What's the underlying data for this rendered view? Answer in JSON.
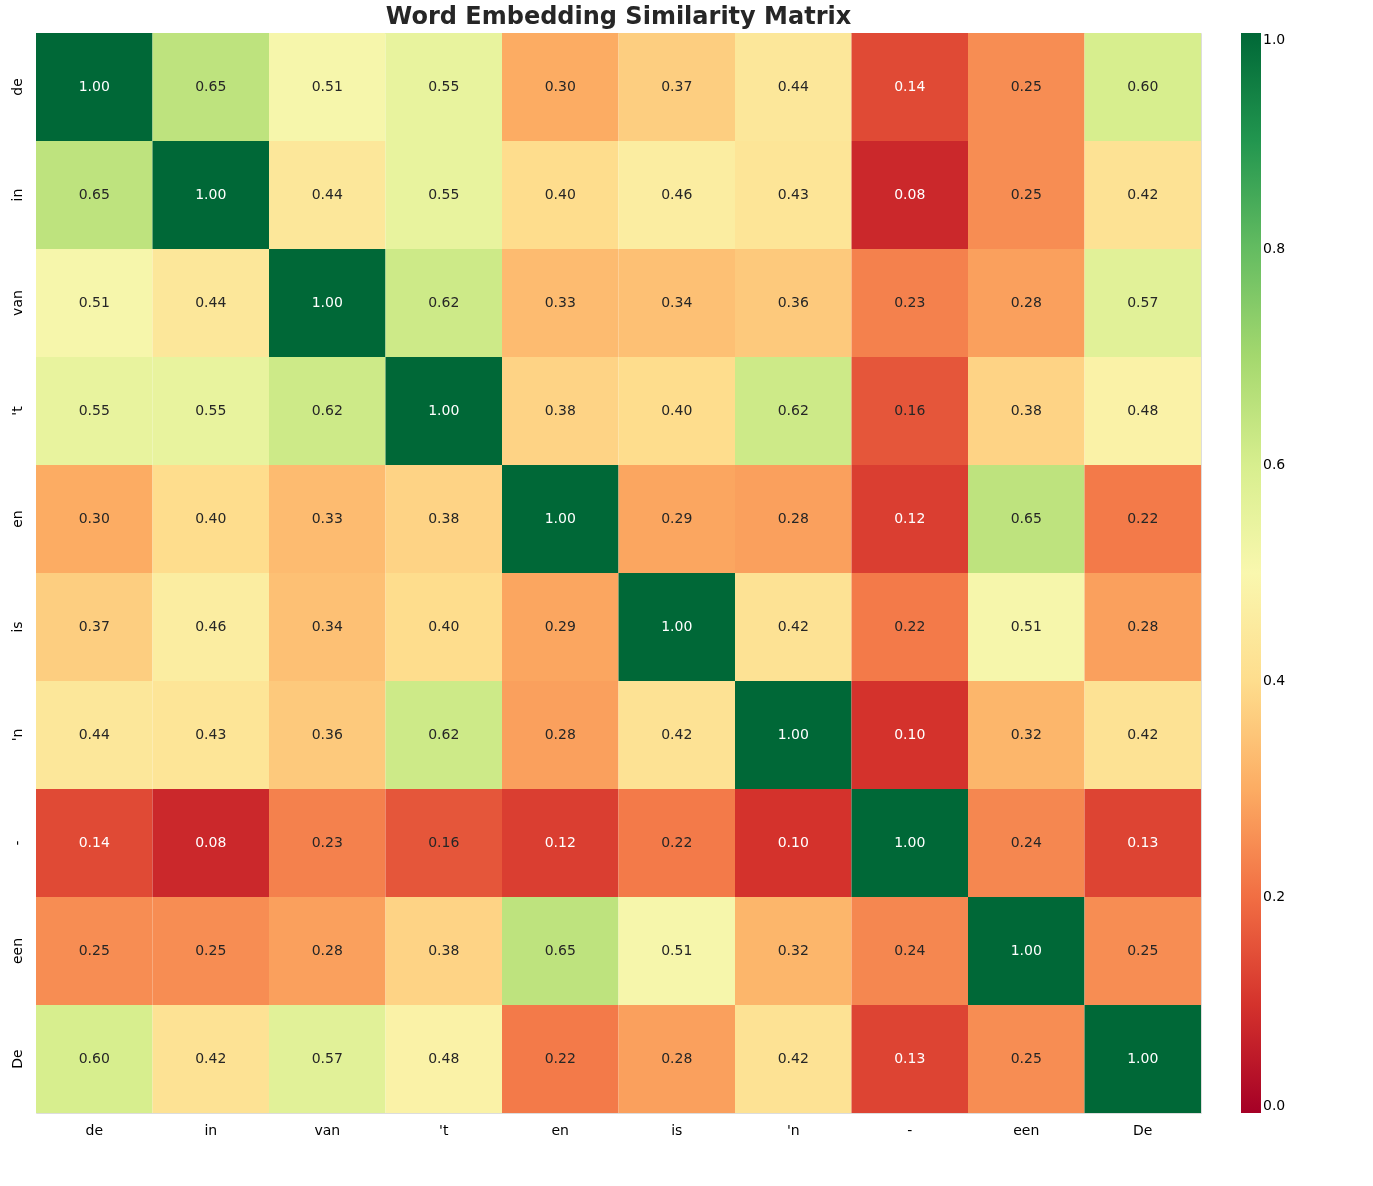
{
  "chart_data": {
    "type": "heatmap",
    "title": "Word Embedding Similarity Matrix",
    "categories": [
      "de",
      "in",
      "van",
      "'t",
      "en",
      "is",
      "'n",
      "-",
      "een",
      "De"
    ],
    "y_categories": [
      "de",
      "in",
      "van",
      "'t",
      "en",
      "is",
      "'n",
      "-",
      "een",
      "De"
    ],
    "cells": [
      [
        1.0,
        0.65,
        0.51,
        0.55,
        0.3,
        0.37,
        0.44,
        0.14,
        0.25,
        0.6
      ],
      [
        0.65,
        1.0,
        0.44,
        0.55,
        0.4,
        0.46,
        0.43,
        0.08,
        0.25,
        0.42
      ],
      [
        0.51,
        0.44,
        1.0,
        0.62,
        0.33,
        0.34,
        0.36,
        0.23,
        0.28,
        0.57
      ],
      [
        0.55,
        0.55,
        0.62,
        1.0,
        0.38,
        0.4,
        0.62,
        0.16,
        0.38,
        0.48
      ],
      [
        0.3,
        0.4,
        0.33,
        0.38,
        1.0,
        0.29,
        0.28,
        0.12,
        0.65,
        0.22
      ],
      [
        0.37,
        0.46,
        0.34,
        0.4,
        0.29,
        1.0,
        0.42,
        0.22,
        0.51,
        0.28
      ],
      [
        0.44,
        0.43,
        0.36,
        0.62,
        0.28,
        0.42,
        1.0,
        0.1,
        0.32,
        0.42
      ],
      [
        0.14,
        0.08,
        0.23,
        0.16,
        0.12,
        0.22,
        0.1,
        1.0,
        0.24,
        0.13
      ],
      [
        0.25,
        0.25,
        0.28,
        0.38,
        0.65,
        0.51,
        0.32,
        0.24,
        1.0,
        0.25
      ],
      [
        0.6,
        0.42,
        0.57,
        0.48,
        0.22,
        0.28,
        0.42,
        0.13,
        0.25,
        1.0
      ]
    ],
    "cell_labels": [
      [
        "1.00",
        "0.65",
        "0.51",
        "0.55",
        "0.30",
        "0.37",
        "0.44",
        "0.14",
        "0.25",
        "0.60"
      ],
      [
        "0.65",
        "1.00",
        "0.44",
        "0.55",
        "0.40",
        "0.46",
        "0.43",
        "0.08",
        "0.25",
        "0.42"
      ],
      [
        "0.51",
        "0.44",
        "1.00",
        "0.62",
        "0.33",
        "0.34",
        "0.36",
        "0.23",
        "0.28",
        "0.57"
      ],
      [
        "0.55",
        "0.55",
        "0.62",
        "1.00",
        "0.38",
        "0.40",
        "0.62",
        "0.16",
        "0.38",
        "0.48"
      ],
      [
        "0.30",
        "0.40",
        "0.33",
        "0.38",
        "1.00",
        "0.29",
        "0.28",
        "0.12",
        "0.65",
        "0.22"
      ],
      [
        "0.37",
        "0.46",
        "0.34",
        "0.40",
        "0.29",
        "1.00",
        "0.42",
        "0.22",
        "0.51",
        "0.28"
      ],
      [
        "0.44",
        "0.43",
        "0.36",
        "0.62",
        "0.28",
        "0.42",
        "1.00",
        "0.10",
        "0.32",
        "0.42"
      ],
      [
        "0.14",
        "0.08",
        "0.23",
        "0.16",
        "0.12",
        "0.22",
        "0.10",
        "1.00",
        "0.24",
        "0.13"
      ],
      [
        "0.25",
        "0.25",
        "0.28",
        "0.38",
        "0.65",
        "0.51",
        "0.32",
        "0.24",
        "1.00",
        "0.25"
      ],
      [
        "0.60",
        "0.42",
        "0.57",
        "0.48",
        "0.22",
        "0.28",
        "0.42",
        "0.13",
        "0.25",
        "1.00"
      ]
    ],
    "clim": [
      0,
      1
    ],
    "cticks": [
      {
        "value": 0,
        "label": "0.0"
      },
      {
        "value": 0.2,
        "label": "0.2"
      },
      {
        "value": 0.4,
        "label": "0.4"
      },
      {
        "value": 0.6,
        "label": "0.6"
      },
      {
        "value": 0.8,
        "label": "0.8"
      },
      {
        "value": 1,
        "label": "1.0"
      }
    ],
    "grid": false
  }
}
